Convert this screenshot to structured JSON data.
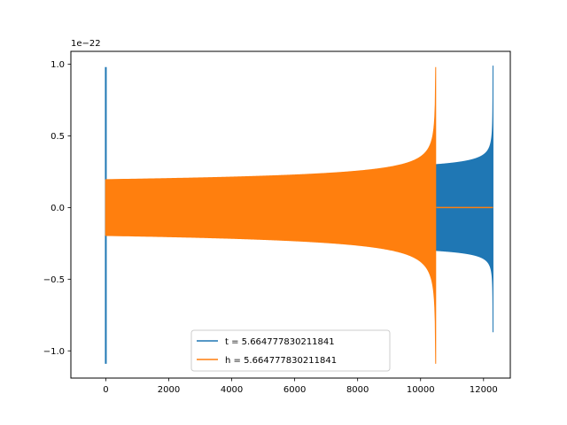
{
  "chart_data": {
    "type": "line",
    "title": "",
    "xlabel": "",
    "ylabel": "",
    "y_offset_text": "1e−22",
    "xlim": [
      -1110,
      12850
    ],
    "ylim": [
      -1.19,
      1.09
    ],
    "x_ticks": [
      0,
      2000,
      4000,
      6000,
      8000,
      10000,
      12000
    ],
    "x_tick_labels": [
      "0",
      "2000",
      "4000",
      "6000",
      "8000",
      "10000",
      "12000"
    ],
    "y_ticks": [
      -1.0,
      -0.5,
      0.0,
      0.5,
      1.0
    ],
    "y_tick_labels": [
      "−1.0",
      "−0.5",
      "0.0",
      "0.5",
      "1.0"
    ],
    "grid": false,
    "legend_placement": "lower-center",
    "series": [
      {
        "name": "t = 5.664777830211841",
        "color": "#1f77b4",
        "spike": {
          "x": 0,
          "y_min": -1.09,
          "y_max": 0.98
        },
        "envelope_start_x": 10500,
        "envelope_start_amp": 0.3,
        "envelope_end_x": 12300,
        "envelope_end_max": 0.99,
        "envelope_end_min": -0.87
      },
      {
        "name": "h = 5.664777830211841",
        "color": "#ff7f0e",
        "envelope_start_x": 0,
        "envelope_start_amp": 0.195,
        "envelope_end_x": 10480,
        "envelope_end_max": 0.98,
        "envelope_end_min": -1.09,
        "flat_from_x": 10500,
        "flat_to_x": 12300,
        "flat_y": 0.0
      }
    ]
  }
}
